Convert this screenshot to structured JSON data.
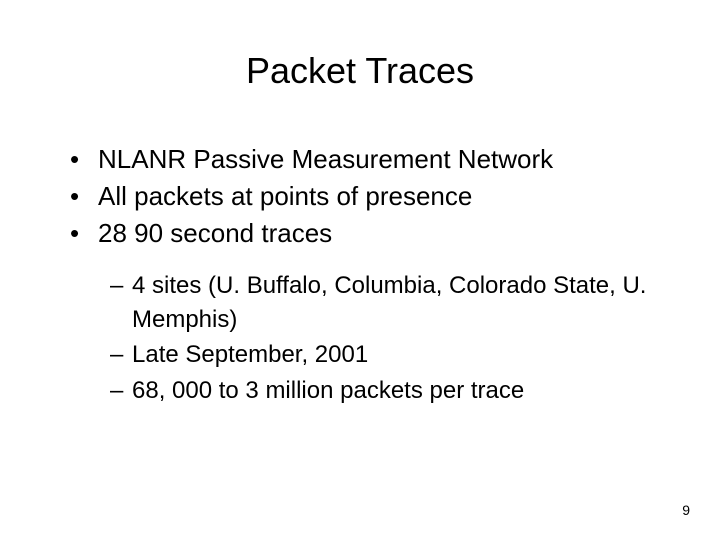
{
  "title": "Packet Traces",
  "bullets": {
    "b1": "NLANR Passive Measurement Network",
    "b2": "All packets at points of presence",
    "b3": "28 90 second traces"
  },
  "subbullets": {
    "s1": "4 sites (U. Buffalo, Columbia, Colorado State, U. Memphis)",
    "s2": "Late September, 2001",
    "s3": "68, 000 to 3 million packets per trace"
  },
  "page_number": "9",
  "colors": {
    "background": "#ffffff",
    "text": "#000000"
  },
  "typography": {
    "title_fontsize": 36,
    "bullet_fontsize": 26,
    "subbullet_fontsize": 24,
    "pagenum_fontsize": 14,
    "font_family": "Arial"
  }
}
